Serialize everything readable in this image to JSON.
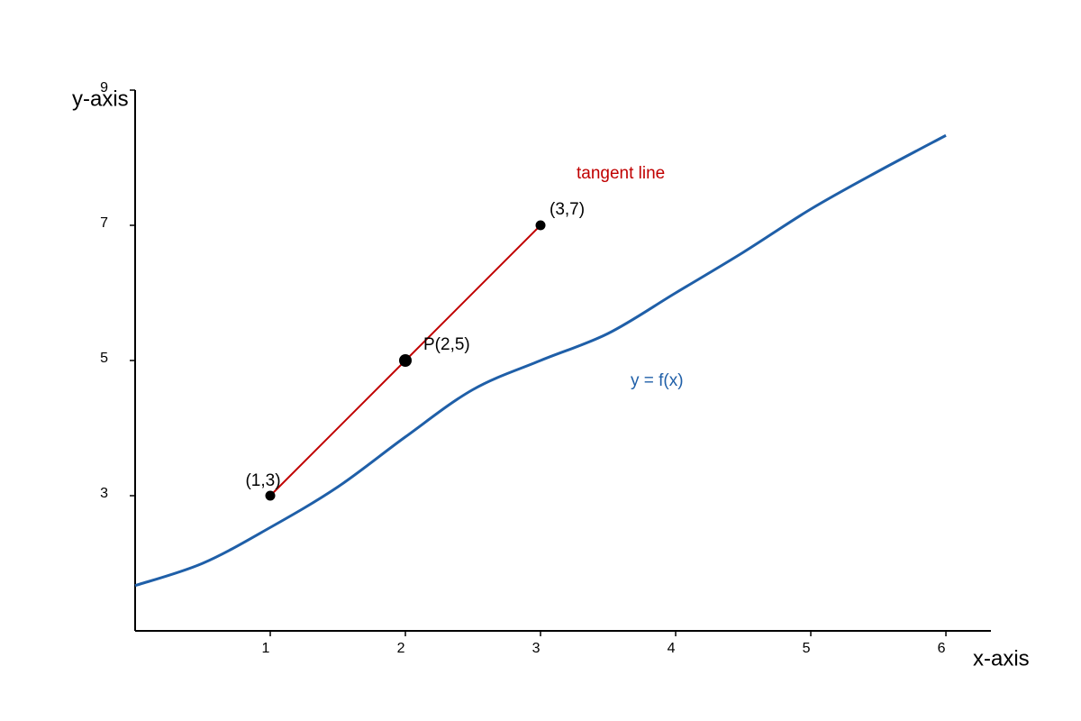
{
  "chart_data": {
    "type": "line",
    "x_label": "x-axis",
    "y_label": "y-axis",
    "xlim": [
      0,
      6.333
    ],
    "ylim": [
      1,
      9
    ],
    "xticks": [
      1,
      2,
      3,
      4,
      5,
      6
    ],
    "yticks": [
      3,
      5,
      7,
      9
    ],
    "series": [
      {
        "name": "y = f(x)",
        "color": "#1f5fa8",
        "x": [
          0,
          0.5,
          1,
          1.5,
          2,
          2.5,
          3,
          3.5,
          4,
          4.5,
          5,
          5.5,
          6
        ],
        "values": [
          1.67,
          2.0,
          2.53,
          3.13,
          3.87,
          4.57,
          5.0,
          5.4,
          6.0,
          6.6,
          7.24,
          7.8,
          8.33
        ]
      },
      {
        "name": "tangent line",
        "color": "#c00000",
        "x": [
          1,
          2,
          3
        ],
        "values": [
          3,
          5,
          7
        ],
        "value_labels": [
          "(1,3)",
          "P(2,5)",
          "(3,7)"
        ]
      }
    ]
  }
}
